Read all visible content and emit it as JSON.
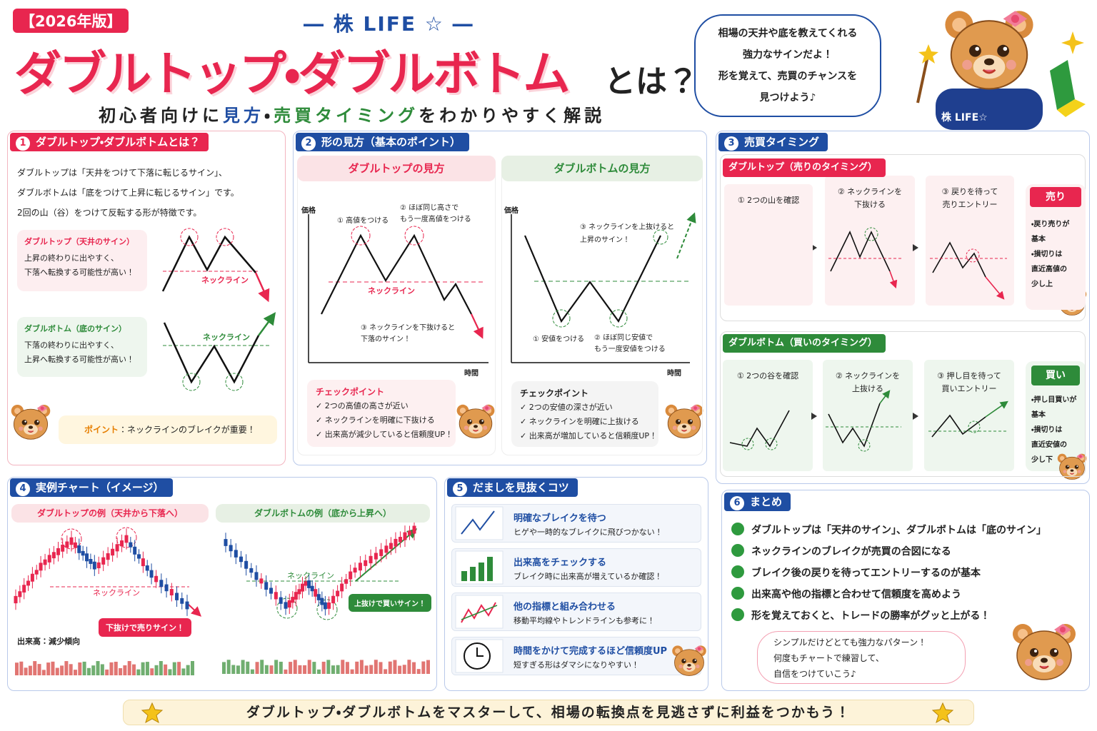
{
  "header": {
    "badge": "【2026年版】",
    "brand": "― 株 LIFE ☆ ―",
    "title": "ダブルトップ・ダブルボトム",
    "title_suffix": "とは？",
    "subtitle": [
      "初心者向けに",
      "見方",
      "・",
      "売買タイミング",
      "をわかりやすく解説"
    ],
    "speech": "相場の天井や底を教えてくれる\n強力なサインだよ！\n形を覚えて、売買のチャンスを\n見つけよう♪",
    "mascot_shirt": "株 LIFE☆"
  },
  "section1": {
    "number": 1,
    "title": "ダブルトップ・ダブルボトムとは？",
    "intro": "ダブルトップは「天井をつけて下落に転じるサイン」、\nダブルボトムは「底をつけて上昇に転じるサイン」です。\n2回の山（谷）をつけて反転する形が特徴です。",
    "top_box": {
      "title": "ダブルトップ（天井のサイン）",
      "text": "上昇の終わりに出やすく、\n下落へ転換する可能性が高い！",
      "neckline": "ネックライン"
    },
    "bottom_box": {
      "title": "ダブルボトム（底のサイン）",
      "text": "下落の終わりに出やすく、\n上昇へ転換する可能性が高い！",
      "neckline": "ネックライン"
    },
    "point_label": "ポイント",
    "point_text": "：ネックラインのブレイクが重要！"
  },
  "section2": {
    "number": 2,
    "title": "形の見方（基本のポイント）",
    "top": {
      "title": "ダブルトップの見方",
      "y_axis": "価格",
      "x_axis": "時間",
      "notes": [
        "① 高値をつける",
        "② ほぼ同じ高さで\nもう一度高値をつける",
        "ネックライン",
        "③ ネックラインを下抜けると\n下落のサイン！"
      ],
      "check_title": "チェックポイント",
      "checks": [
        "✓ 2つの高値の高さが近い",
        "✓ ネックラインを明確に下抜ける",
        "✓ 出来高が減少していると信頼度UP！"
      ]
    },
    "bottom": {
      "title": "ダブルボトムの見方",
      "y_axis": "価格",
      "x_axis": "時間",
      "notes": [
        "③ ネックラインを上抜けると\n上昇のサイン！",
        "① 安値をつける",
        "② ほぼ同じ安値で\nもう一度安値をつける"
      ],
      "check_title": "チェックポイント",
      "checks": [
        "✓ 2つの安値の深さが近い",
        "✓ ネックラインを明確に上抜ける",
        "✓ 出来高が増加していると信頼度UP！"
      ]
    }
  },
  "section3": {
    "number": 3,
    "title": "売買タイミング",
    "sell": {
      "title": "ダブルトップ（売りのタイミング）",
      "steps": [
        "① 2つの山を確認",
        "② ネックラインを\n下抜ける",
        "③ 戻りを待って\n売りエントリー"
      ],
      "tag": "売り",
      "side": "・戻り売りが\n基本\n・損切りは\n直近高値の\n少し上"
    },
    "buy": {
      "title": "ダブルボトム（買いのタイミング）",
      "steps": [
        "① 2つの谷を確認",
        "② ネックラインを\n上抜ける",
        "③ 押し目を待って\n買いエントリー"
      ],
      "tag": "買い",
      "side": "・押し目買いが\n基本\n・損切りは\n直近安値の\n少し下"
    }
  },
  "section4": {
    "number": 4,
    "title": "実例チャート（イメージ）",
    "top_example": {
      "title": "ダブルトップの例（天井から下落へ）",
      "neckline": "ネックライン",
      "signal": "下抜けで売りサイン！",
      "volume": "出来高：減少傾向"
    },
    "bottom_example": {
      "title": "ダブルボトムの例（底から上昇へ）",
      "neckline": "ネックライン",
      "signal": "上抜けで買いサイン！"
    }
  },
  "section5": {
    "number": 5,
    "title": "だましを見抜くコツ",
    "tips": [
      {
        "title": "明確なブレイクを待つ",
        "text": "ヒゲや一時的なブレイクに飛びつかない！"
      },
      {
        "title": "出来高をチェックする",
        "text": "ブレイク時に出来高が増えているか確認！"
      },
      {
        "title": "他の指標と組み合わせる",
        "text": "移動平均線やトレンドラインも参考に！"
      },
      {
        "title": "時間をかけて完成するほど信頼度UP",
        "text": "短すぎる形はダマシになりやすい！"
      }
    ]
  },
  "section6": {
    "number": 6,
    "title": "まとめ",
    "items": [
      "ダブルトップは「天井のサイン」、ダブルボトムは「底のサイン」",
      "ネックラインのブレイクが売買の合図になる",
      "ブレイク後の戻りを待ってエントリーするのが基本",
      "出来高や他の指標と合わせて信頼度を高めよう",
      "形を覚えておくと、トレードの勝率がグッと上がる！"
    ],
    "bubble": "シンプルだけどとても強力なパターン！\n何度もチャートで練習して、\n自信をつけていこう♪"
  },
  "footer": "ダブルトップ・ダブルボトムをマスターして、相場の転換点を見逃さずに利益をつかもう！"
}
